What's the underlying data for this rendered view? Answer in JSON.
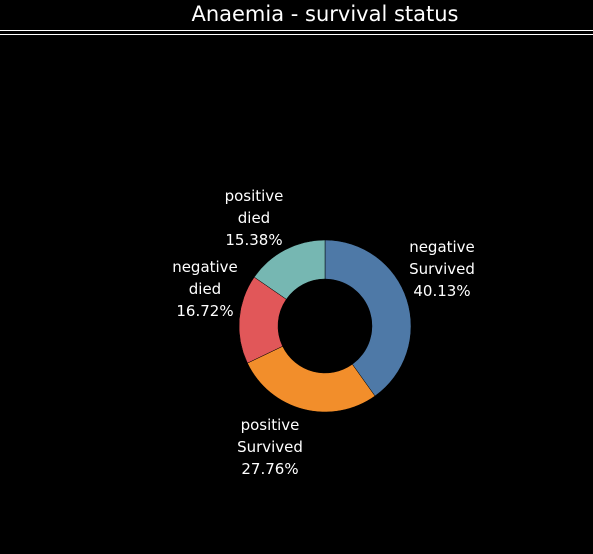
{
  "chart_data": {
    "type": "pie",
    "title": "Anaemia - survival status",
    "slices": [
      {
        "line1": "negative",
        "line2": "Survived",
        "value": 40.13,
        "percent_label": "40.13%",
        "color": "#4e79a7"
      },
      {
        "line1": "positive",
        "line2": "Survived",
        "value": 27.76,
        "percent_label": "27.76%",
        "color": "#f28e2b"
      },
      {
        "line1": "negative",
        "line2": "died",
        "value": 16.72,
        "percent_label": "16.72%",
        "color": "#e15759"
      },
      {
        "line1": "positive",
        "line2": "died",
        "value": 15.38,
        "percent_label": "15.38%",
        "color": "#76b7b2"
      }
    ]
  }
}
